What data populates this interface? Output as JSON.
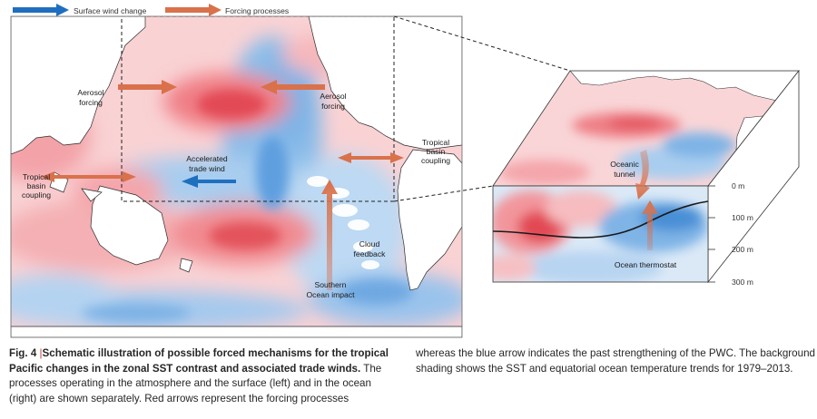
{
  "legend": {
    "wind_label": "Surface wind change",
    "forcing_label": "Forcing processes",
    "wind_color": "#1f6fbf",
    "forcing_color": "#d9714b"
  },
  "map_labels": {
    "aerosol_left": [
      "Aerosol",
      "forcing"
    ],
    "aerosol_right": [
      "Aerosol",
      "forcing"
    ],
    "accelerated": [
      "Accelerated",
      "trade wind"
    ],
    "tropical_left": [
      "Tropical",
      "basin",
      "coupling"
    ],
    "tropical_right": [
      "Tropical",
      "basin",
      "coupling"
    ],
    "cloud": [
      "Cloud",
      "feedback"
    ],
    "southern": [
      "Southern",
      "Ocean impact"
    ]
  },
  "ocean_labels": {
    "tunnel": [
      "Oceanic",
      "tunnel"
    ],
    "thermostat": "Ocean thermostat"
  },
  "depth_ticks": [
    "0 m",
    "100 m",
    "200 m",
    "300 m"
  ],
  "caption": {
    "fig_label": "Fig. 4",
    "separator": "|",
    "title": "Schematic illustration of possible forced mechanisms for the tropical Pacific changes in the zonal SST contrast and associated trade winds.",
    "body_left": "The processes operating in the atmosphere and the surface (left) and in the ocean (right) are shown separately. Red arrows represent the forcing processes",
    "body_right": "whereas the blue arrow indicates the past strengthening of the PWC. The background shading shows the SST and equatorial ocean temperature trends for 1979–2013."
  },
  "colors": {
    "warm": "#e8505b",
    "warm_light": "#f6b6b9",
    "cool": "#4a90d9",
    "cool_light": "#b9d6f2",
    "land": "#ffffff"
  }
}
